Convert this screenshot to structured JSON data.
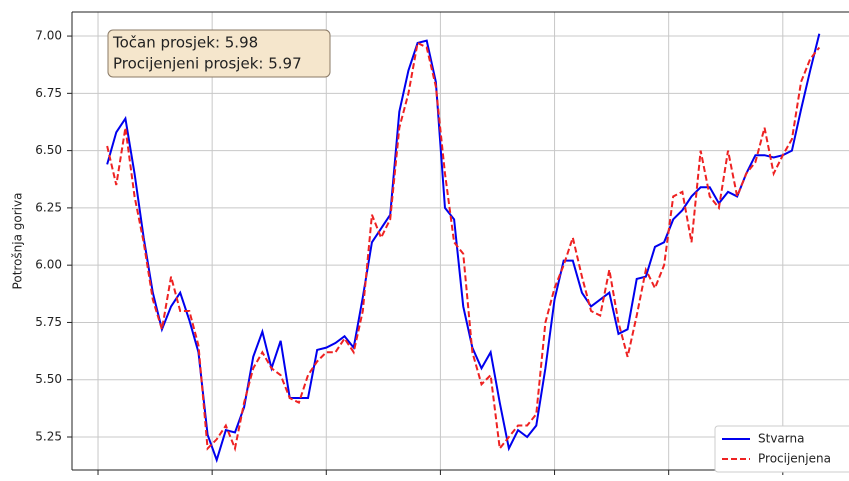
{
  "chart_data": {
    "type": "line",
    "y_label": "Potrošnja goriva",
    "annotation": [
      "Točan prosjek: 5.98",
      "Procijenjeni prosjek: 5.97"
    ],
    "x": [
      2,
      4,
      6,
      8,
      10,
      12,
      14,
      16,
      18,
      20,
      22,
      24,
      26,
      28,
      30,
      32,
      34,
      36,
      38,
      40,
      42,
      44,
      46,
      48,
      50,
      52,
      54,
      56,
      58,
      60,
      62,
      64,
      66,
      68,
      70,
      72,
      74,
      76,
      78,
      80,
      82,
      84,
      86,
      88,
      90,
      92,
      94,
      96,
      98,
      100,
      102,
      104,
      106,
      108,
      110,
      112,
      114,
      116,
      118,
      120,
      122,
      124,
      126,
      128,
      130,
      132,
      134,
      136,
      138,
      140,
      142,
      144,
      146,
      148,
      150,
      152,
      154,
      156,
      158
    ],
    "series": [
      {
        "name": "Stvarna",
        "color": "#0000ee",
        "dash": false,
        "values": [
          6.44,
          6.58,
          6.64,
          6.4,
          6.12,
          5.88,
          5.72,
          5.82,
          5.88,
          5.76,
          5.62,
          5.26,
          5.15,
          5.28,
          5.27,
          5.38,
          5.6,
          5.71,
          5.55,
          5.67,
          5.42,
          5.42,
          5.42,
          5.63,
          5.64,
          5.66,
          5.69,
          5.64,
          5.86,
          6.1,
          6.16,
          6.22,
          6.67,
          6.85,
          6.97,
          6.98,
          6.8,
          6.25,
          6.2,
          5.82,
          5.64,
          5.55,
          5.62,
          5.4,
          5.2,
          5.28,
          5.25,
          5.3,
          5.55,
          5.85,
          6.02,
          6.02,
          5.88,
          5.82,
          5.85,
          5.88,
          5.7,
          5.72,
          5.94,
          5.95,
          6.08,
          6.1,
          6.2,
          6.24,
          6.3,
          6.34,
          6.34,
          6.27,
          6.32,
          6.3,
          6.4,
          6.48,
          6.48,
          6.47,
          6.48,
          6.5,
          6.68,
          6.85,
          7.01
        ]
      },
      {
        "name": "Procijenjena",
        "color": "#ee2222",
        "dash": true,
        "values": [
          6.52,
          6.35,
          6.6,
          6.3,
          6.1,
          5.85,
          5.72,
          5.95,
          5.8,
          5.8,
          5.65,
          5.2,
          5.24,
          5.3,
          5.2,
          5.4,
          5.55,
          5.62,
          5.55,
          5.52,
          5.42,
          5.4,
          5.52,
          5.58,
          5.62,
          5.62,
          5.68,
          5.62,
          5.8,
          6.22,
          6.12,
          6.2,
          6.6,
          6.75,
          6.97,
          6.95,
          6.78,
          6.4,
          6.1,
          6.05,
          5.62,
          5.48,
          5.52,
          5.2,
          5.25,
          5.3,
          5.3,
          5.35,
          5.75,
          5.9,
          6.0,
          6.12,
          5.95,
          5.8,
          5.78,
          5.98,
          5.75,
          5.6,
          5.78,
          5.98,
          5.9,
          6.0,
          6.3,
          6.32,
          6.1,
          6.5,
          6.3,
          6.25,
          6.5,
          6.3,
          6.4,
          6.45,
          6.6,
          6.4,
          6.48,
          6.55,
          6.8,
          6.9,
          6.95
        ]
      }
    ],
    "xlim": [
      -5.7,
      164.5
    ],
    "xticks": [
      0,
      25,
      50,
      75,
      100,
      125,
      150
    ],
    "ylim": [
      5.106,
      7.105
    ],
    "yticks": [
      {
        "value": 5.25,
        "label": "5.25"
      },
      {
        "value": 5.5,
        "label": "5.50"
      },
      {
        "value": 5.75,
        "label": "5.75"
      },
      {
        "value": 6,
        "label": "6.00"
      },
      {
        "value": 6.25,
        "label": "6.25"
      },
      {
        "value": 6.5,
        "label": "6.50"
      },
      {
        "value": 6.75,
        "label": "6.75"
      },
      {
        "value": 7,
        "label": "7.00"
      }
    ],
    "grid": true,
    "legend": "lower right"
  }
}
